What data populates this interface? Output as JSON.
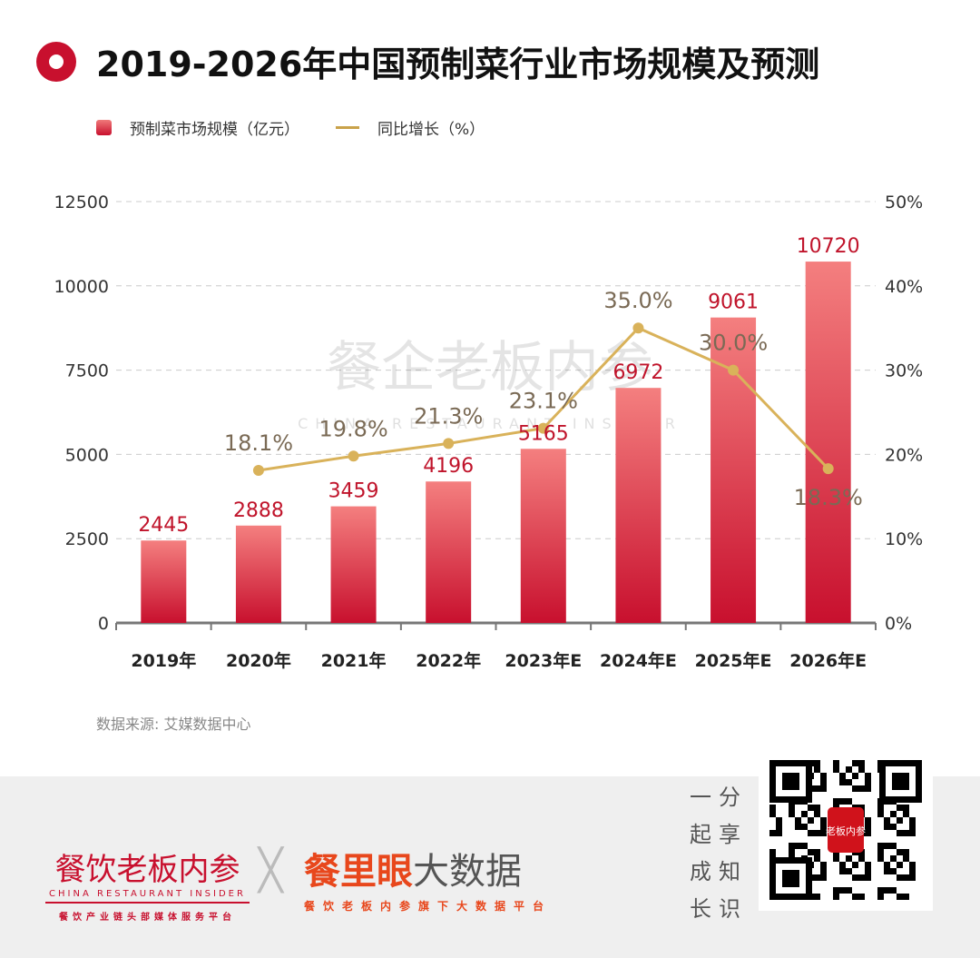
{
  "header": {
    "title": "2019-2026年中国预制菜行业市场规模及预测"
  },
  "legend": {
    "bar": "预制菜市场规模（亿元）",
    "line": "同比增长（%）"
  },
  "source": "数据来源: 艾媒数据中心",
  "watermark": {
    "cn": "餐企老板内参",
    "en": "CHINA RESTAURANT INSIDER"
  },
  "footer": {
    "logo1_main": "餐饮老板内参",
    "logo1_en": "CHINA RESTAURANT INSIDER",
    "logo1_sub": "餐饮产业链头部媒体服务平台",
    "logo2_main": "餐里眼",
    "logo2_main2": "大数据",
    "logo2_sub": "餐饮老板内参旗下大数据平台",
    "slogan": [
      "一",
      "分",
      "起",
      "享",
      "成",
      "知",
      "长",
      "识"
    ],
    "qr_badge": "老板内参"
  },
  "colors": {
    "bar_top": "#f47f7f",
    "bar_bottom": "#c8102e",
    "line": "#d9b25a",
    "bar_label": "#c0142b",
    "line_label": "#7a6a55"
  },
  "chart_data": {
    "type": "bar",
    "title": "2019-2026年中国预制菜行业市场规模及预测",
    "categories": [
      "2019年",
      "2020年",
      "2021年",
      "2022年",
      "2023年E",
      "2024年E",
      "2025年E",
      "2026年E"
    ],
    "series": [
      {
        "name": "预制菜市场规模（亿元）",
        "type": "bar",
        "axis": "left",
        "values": [
          2445,
          2888,
          3459,
          4196,
          5165,
          6972,
          9061,
          10720
        ],
        "labels": [
          "2445",
          "2888",
          "3459",
          "4196",
          "5165",
          "6972",
          "9061",
          "10720"
        ]
      },
      {
        "name": "同比增长（%）",
        "type": "line",
        "axis": "right",
        "values": [
          null,
          18.1,
          19.8,
          21.3,
          23.1,
          35.0,
          30.0,
          18.3
        ],
        "labels": [
          "",
          "18.1%",
          "19.8%",
          "21.3%",
          "23.1%",
          "35.0%",
          "30.0%",
          "18.3%"
        ]
      }
    ],
    "ylim": [
      0,
      12500
    ],
    "yticks": [
      "0",
      "2500",
      "5000",
      "7500",
      "10000",
      "12500"
    ],
    "y2lim": [
      0,
      50
    ],
    "y2ticks": [
      "0%",
      "10%",
      "20%",
      "30%",
      "40%",
      "50%"
    ],
    "grid": true
  }
}
